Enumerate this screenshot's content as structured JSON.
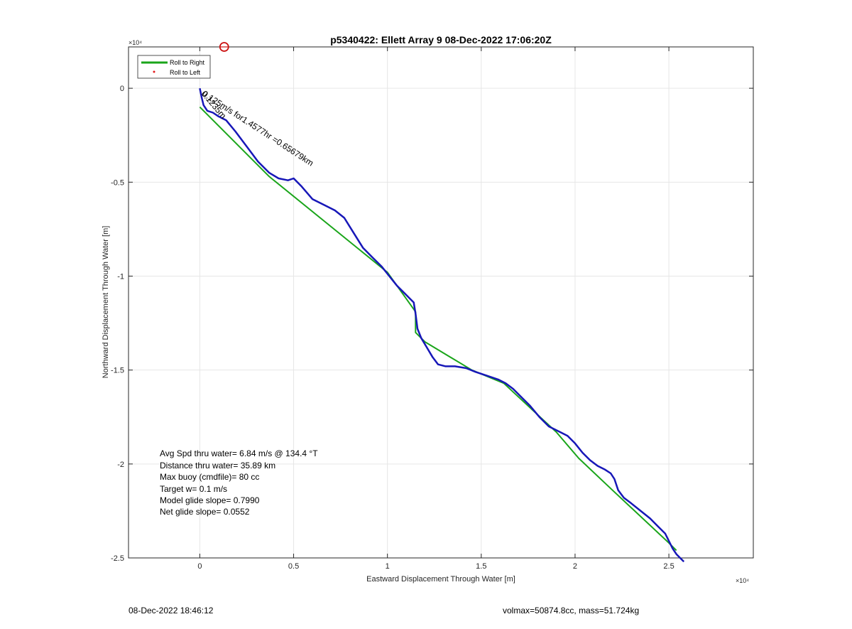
{
  "chart_data": {
    "type": "line",
    "title": "p5340422: Ellett Array 9 08-Dec-2022 17:06:20Z",
    "xlabel": "Eastward Displacement Through Water [m]",
    "ylabel": "Northward Displacement Through Water [m]",
    "xlim": [
      -3800,
      29500
    ],
    "ylim": [
      -25000,
      2200
    ],
    "x_exponent_label": "×10⁴",
    "y_exponent_label": "×10⁴",
    "x_ticks": [
      0,
      5000,
      10000,
      15000,
      20000,
      25000
    ],
    "x_tick_labels": [
      "0",
      "0.5",
      "1",
      "1.5",
      "2",
      "2.5"
    ],
    "y_ticks": [
      0,
      -5000,
      -10000,
      -15000,
      -20000,
      -25000
    ],
    "y_tick_labels": [
      "0",
      "-0.5",
      "-1",
      "-1.5",
      "-2",
      "-2.5"
    ],
    "grid": true,
    "legend_position": "top-left",
    "legend": [
      {
        "label": "Roll to Right",
        "color": "#1aa51a",
        "style": "line"
      },
      {
        "label": "Roll to Left",
        "color": "#e41a1c",
        "style": "dot"
      }
    ],
    "series": [
      {
        "name": "Roll to Right",
        "color": "#1aa51a",
        "x": [
          0,
          3700,
          10000,
          11500,
          11500,
          12000,
          14500,
          16200,
          19000,
          20200,
          22000,
          25000,
          25400
        ],
        "y": [
          -1000,
          -4700,
          -9800,
          -11900,
          -13000,
          -13500,
          -15000,
          -15700,
          -18300,
          -19700,
          -21400,
          -24200,
          -24600
        ]
      },
      {
        "color": "#1717b8",
        "x": [
          0,
          100,
          200,
          400,
          700,
          1000,
          1400,
          1900,
          2500,
          3100,
          3700,
          4200,
          4700,
          5000,
          5400,
          6000,
          6600,
          7200,
          7700,
          8200,
          8700,
          9200,
          9700,
          10100,
          10500,
          10900,
          11200,
          11400,
          11500,
          11600,
          11800,
          12100,
          12400,
          12700,
          13100,
          13600,
          14200,
          14700,
          15300,
          15900,
          16300,
          16700,
          17100,
          17600,
          18100,
          18600,
          19200,
          19600,
          20000,
          20400,
          20800,
          21200,
          21600,
          21900,
          22100,
          22300,
          22600,
          23000,
          23500,
          24000,
          24400,
          24800,
          25000,
          25200,
          25400,
          25600,
          25800
        ],
        "y": [
          0,
          -500,
          -900,
          -1200,
          -1300,
          -1500,
          -1700,
          -2300,
          -3100,
          -3900,
          -4500,
          -4800,
          -4900,
          -4800,
          -5200,
          -5900,
          -6200,
          -6500,
          -6900,
          -7700,
          -8500,
          -9000,
          -9500,
          -10000,
          -10500,
          -10900,
          -11200,
          -11400,
          -12000,
          -12800,
          -13300,
          -13800,
          -14300,
          -14700,
          -14800,
          -14800,
          -14900,
          -15100,
          -15300,
          -15500,
          -15700,
          -16000,
          -16400,
          -16900,
          -17500,
          -18000,
          -18300,
          -18500,
          -18900,
          -19400,
          -19800,
          -20100,
          -20300,
          -20500,
          -20800,
          -21400,
          -21800,
          -22100,
          -22500,
          -22900,
          -23300,
          -23700,
          -24100,
          -24500,
          -24800,
          -25000,
          -25200
        ]
      }
    ],
    "start_marker": {
      "x": 1300,
      "y": 2200,
      "color": "#cc1111"
    },
    "annotations": {
      "path_label": "0.125m/s for1.4577hr =0.65679km",
      "origin_cluster_label": "0.1235m",
      "stats": [
        "Avg Spd thru water=  6.84 m/s @ 134.4 °T",
        "Distance thru water= 35.89 km",
        "Max buoy (cmdfile)= 80 cc",
        "Target w= 0.1 m/s",
        "Model glide slope= 0.7990",
        "Net glide slope= 0.0552"
      ]
    }
  },
  "footer": {
    "left": "08-Dec-2022 18:46:12",
    "right": "volmax=50874.8cc, mass=51.724kg"
  }
}
